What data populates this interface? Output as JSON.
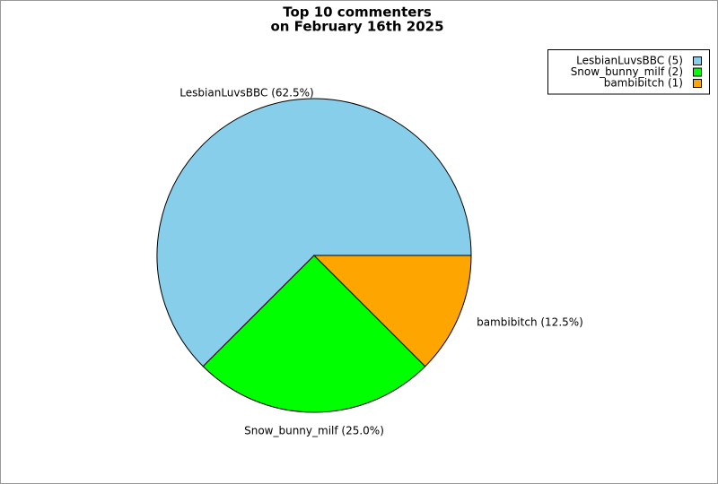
{
  "chart_data": {
    "type": "pie",
    "title": [
      "Top 10 commenters",
      "on February 16th 2025"
    ],
    "values": [
      62.5,
      25.0,
      12.5
    ],
    "value_labels": [
      "LesbianLuvsBBC (62.5%)",
      "Snow_bunny_milf (25.0%)",
      "bambibitch (12.5%)"
    ],
    "legend_labels": [
      "LesbianLuvsBBC (5)",
      "Snow_bunny_milf (2)",
      "bambibitch (1)"
    ],
    "colors": [
      "#87ceeb",
      "#00ff00",
      "#ffa500"
    ],
    "legend": "upper right"
  }
}
